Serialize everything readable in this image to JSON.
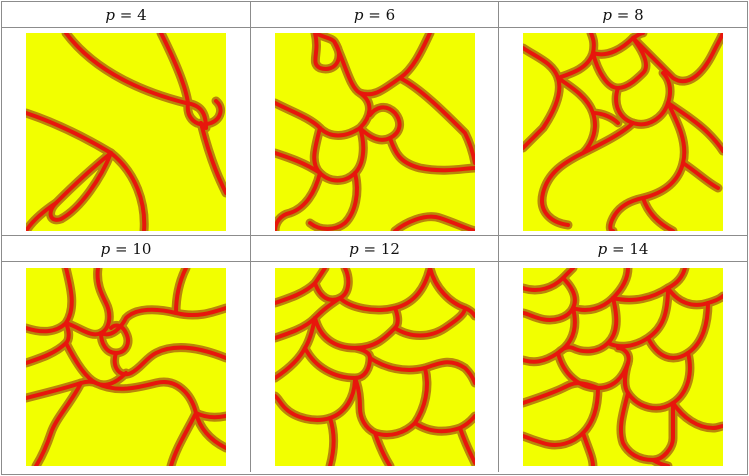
{
  "colors": {
    "field": "#f2ff00",
    "wall": "#e8160c",
    "wall_shade": "#b8860b",
    "grid_line": "#8c8c8c"
  },
  "panels": [
    {
      "var": "p",
      "eq": " = ",
      "value": "4"
    },
    {
      "var": "p",
      "eq": " = ",
      "value": "6"
    },
    {
      "var": "p",
      "eq": " = ",
      "value": "8"
    },
    {
      "var": "p",
      "eq": " = ",
      "value": "10"
    },
    {
      "var": "p",
      "eq": " = ",
      "value": "12"
    },
    {
      "var": "p",
      "eq": " = ",
      "value": "14"
    }
  ]
}
